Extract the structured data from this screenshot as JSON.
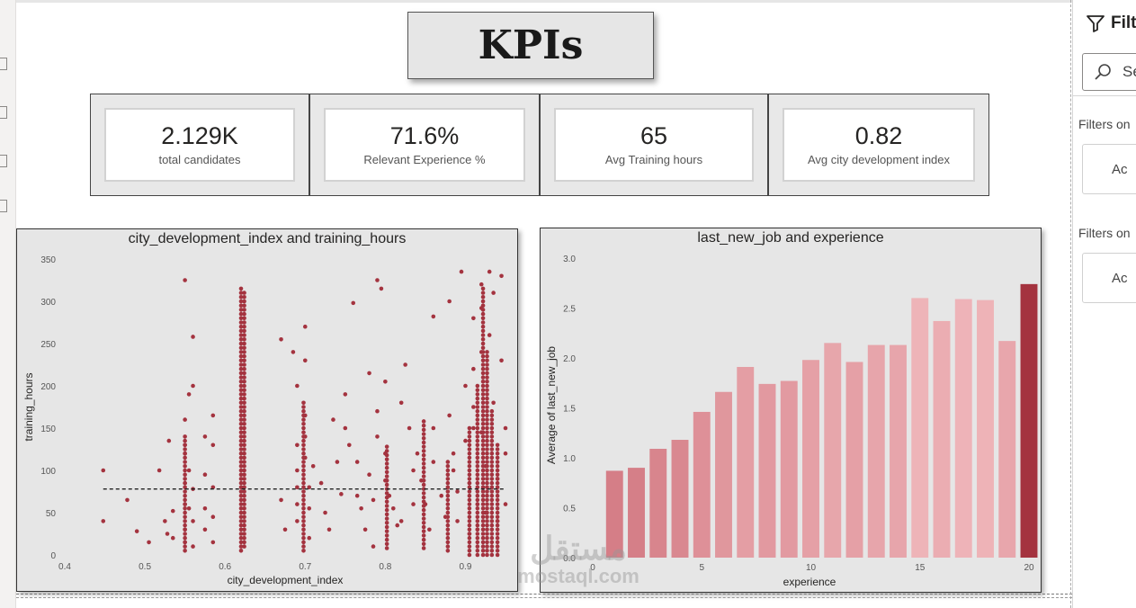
{
  "report": {
    "title": "KPIs"
  },
  "kpis": [
    {
      "value": "2.129K",
      "label": "total candidates"
    },
    {
      "value": "71.6%",
      "label": "Relevant Experience %"
    },
    {
      "value": "65",
      "label": "Avg Training hours"
    },
    {
      "value": "0.82",
      "label": "Avg city development index"
    }
  ],
  "filters_pane": {
    "title": "Filt",
    "search_text": "Se",
    "section_1": "Filters on",
    "add_1": "Ac",
    "section_2": "Filters on",
    "add_2": "Ac"
  },
  "watermark": {
    "arabic": "مستقل",
    "latin": "mostaql.com"
  },
  "colors": {
    "bar_dark": "#a4333f",
    "point": "#a4333f",
    "panel_bg": "#e6e6e6"
  },
  "chart_data": [
    {
      "type": "scatter",
      "title": "city_development_index and training_hours",
      "xlabel": "city_development_index",
      "ylabel": "training_hours",
      "xlim": [
        0.4,
        0.95
      ],
      "ylim": [
        0,
        350
      ],
      "xticks": [
        "0.4",
        "0.5",
        "0.6",
        "0.7",
        "0.8",
        "0.9"
      ],
      "yticks": [
        "0",
        "50",
        "100",
        "150",
        "200",
        "250",
        "300",
        "350"
      ],
      "trend_line": {
        "style": "dashed",
        "y": 78,
        "x_start": 0.448,
        "x_end": 0.95
      },
      "points": [
        [
          0.448,
          100
        ],
        [
          0.448,
          40
        ],
        [
          0.478,
          65
        ],
        [
          0.49,
          28
        ],
        [
          0.505,
          15
        ],
        [
          0.518,
          100
        ],
        [
          0.525,
          40
        ],
        [
          0.528,
          25
        ],
        [
          0.53,
          135
        ],
        [
          0.535,
          52
        ],
        [
          0.535,
          20
        ],
        [
          0.55,
          325
        ],
        [
          0.55,
          130
        ],
        [
          0.55,
          160
        ],
        [
          0.55,
          120
        ],
        [
          0.55,
          85
        ],
        [
          0.55,
          60
        ],
        [
          0.55,
          30
        ],
        [
          0.55,
          15
        ],
        [
          0.555,
          190
        ],
        [
          0.555,
          100
        ],
        [
          0.555,
          55
        ],
        [
          0.56,
          258
        ],
        [
          0.56,
          200
        ],
        [
          0.56,
          78
        ],
        [
          0.56,
          40
        ],
        [
          0.56,
          10
        ],
        [
          0.575,
          140
        ],
        [
          0.575,
          95
        ],
        [
          0.575,
          55
        ],
        [
          0.575,
          30
        ],
        [
          0.585,
          165
        ],
        [
          0.585,
          130
        ],
        [
          0.585,
          80
        ],
        [
          0.585,
          45
        ],
        [
          0.585,
          15
        ],
        [
          0.67,
          255
        ],
        [
          0.67,
          65
        ],
        [
          0.675,
          30
        ],
        [
          0.685,
          240
        ],
        [
          0.69,
          200
        ],
        [
          0.69,
          130
        ],
        [
          0.69,
          100
        ],
        [
          0.69,
          80
        ],
        [
          0.69,
          60
        ],
        [
          0.69,
          40
        ],
        [
          0.7,
          270
        ],
        [
          0.7,
          230
        ],
        [
          0.7,
          165
        ],
        [
          0.7,
          140
        ],
        [
          0.7,
          115
        ],
        [
          0.705,
          80
        ],
        [
          0.705,
          55
        ],
        [
          0.705,
          20
        ],
        [
          0.71,
          105
        ],
        [
          0.72,
          85
        ],
        [
          0.725,
          50
        ],
        [
          0.73,
          30
        ],
        [
          0.735,
          160
        ],
        [
          0.74,
          110
        ],
        [
          0.745,
          72
        ],
        [
          0.75,
          190
        ],
        [
          0.75,
          150
        ],
        [
          0.755,
          130
        ],
        [
          0.76,
          298
        ],
        [
          0.765,
          110
        ],
        [
          0.765,
          70
        ],
        [
          0.77,
          55
        ],
        [
          0.775,
          30
        ],
        [
          0.78,
          215
        ],
        [
          0.78,
          95
        ],
        [
          0.785,
          65
        ],
        [
          0.785,
          10
        ],
        [
          0.79,
          170
        ],
        [
          0.79,
          140
        ],
        [
          0.79,
          325
        ],
        [
          0.795,
          315
        ],
        [
          0.8,
          205
        ],
        [
          0.8,
          120
        ],
        [
          0.8,
          88
        ],
        [
          0.805,
          70
        ],
        [
          0.81,
          55
        ],
        [
          0.815,
          35
        ],
        [
          0.82,
          180
        ],
        [
          0.82,
          40
        ],
        [
          0.825,
          225
        ],
        [
          0.83,
          150
        ],
        [
          0.835,
          100
        ],
        [
          0.835,
          60
        ],
        [
          0.84,
          120
        ],
        [
          0.845,
          88
        ],
        [
          0.85,
          60
        ],
        [
          0.855,
          30
        ],
        [
          0.86,
          282
        ],
        [
          0.86,
          150
        ],
        [
          0.86,
          110
        ],
        [
          0.87,
          70
        ],
        [
          0.875,
          45
        ],
        [
          0.88,
          300
        ],
        [
          0.88,
          165
        ],
        [
          0.885,
          120
        ],
        [
          0.885,
          100
        ],
        [
          0.89,
          75
        ],
        [
          0.89,
          40
        ],
        [
          0.895,
          335
        ],
        [
          0.9,
          200
        ],
        [
          0.9,
          135
        ],
        [
          0.905,
          85
        ],
        [
          0.905,
          25
        ],
        [
          0.91,
          280
        ],
        [
          0.91,
          220
        ],
        [
          0.91,
          175
        ],
        [
          0.91,
          150
        ],
        [
          0.915,
          60
        ],
        [
          0.915,
          30
        ],
        [
          0.92,
          320
        ],
        [
          0.92,
          292
        ],
        [
          0.92,
          240
        ],
        [
          0.92,
          145
        ],
        [
          0.925,
          105
        ],
        [
          0.925,
          50
        ],
        [
          0.93,
          335
        ],
        [
          0.93,
          260
        ],
        [
          0.935,
          310
        ],
        [
          0.935,
          180
        ],
        [
          0.94,
          90
        ],
        [
          0.94,
          40
        ],
        [
          0.945,
          330
        ],
        [
          0.945,
          230
        ],
        [
          0.95,
          120
        ],
        [
          0.95,
          150
        ],
        [
          0.95,
          60
        ]
      ],
      "columns": [
        {
          "x": 0.55,
          "ymin": 5,
          "ymax": 140
        },
        {
          "x": 0.62,
          "ymin": 5,
          "ymax": 318
        },
        {
          "x": 0.624,
          "ymin": 10,
          "ymax": 310
        },
        {
          "x": 0.698,
          "ymin": 5,
          "ymax": 180
        },
        {
          "x": 0.802,
          "ymin": 8,
          "ymax": 130
        },
        {
          "x": 0.848,
          "ymin": 8,
          "ymax": 160
        },
        {
          "x": 0.878,
          "ymin": 5,
          "ymax": 110
        },
        {
          "x": 0.905,
          "ymin": 0,
          "ymax": 150
        },
        {
          "x": 0.915,
          "ymin": 0,
          "ymax": 200
        },
        {
          "x": 0.922,
          "ymin": 0,
          "ymax": 315
        },
        {
          "x": 0.927,
          "ymin": 0,
          "ymax": 240
        },
        {
          "x": 0.933,
          "ymin": 0,
          "ymax": 170
        },
        {
          "x": 0.94,
          "ymin": 0,
          "ymax": 130
        }
      ]
    },
    {
      "type": "bar",
      "title": "last_new_job and experience",
      "xlabel": "experience",
      "ylabel": "Average of last_new_job",
      "xlim": [
        0,
        20
      ],
      "ylim": [
        0,
        3.0
      ],
      "xticks": [
        "0",
        "5",
        "10",
        "15",
        "20"
      ],
      "yticks": [
        "0.0",
        "0.5",
        "1.0",
        "1.5",
        "2.0",
        "2.5",
        "3.0"
      ],
      "categories": [
        1,
        2,
        3,
        4,
        5,
        6,
        7,
        8,
        9,
        10,
        11,
        12,
        13,
        14,
        15,
        16,
        17,
        18,
        19,
        20
      ],
      "values": [
        0.87,
        0.9,
        1.09,
        1.18,
        1.46,
        1.66,
        1.91,
        1.74,
        1.77,
        1.98,
        2.15,
        1.96,
        2.13,
        2.13,
        2.6,
        2.37,
        2.59,
        2.58,
        2.17,
        2.74
      ]
    }
  ]
}
